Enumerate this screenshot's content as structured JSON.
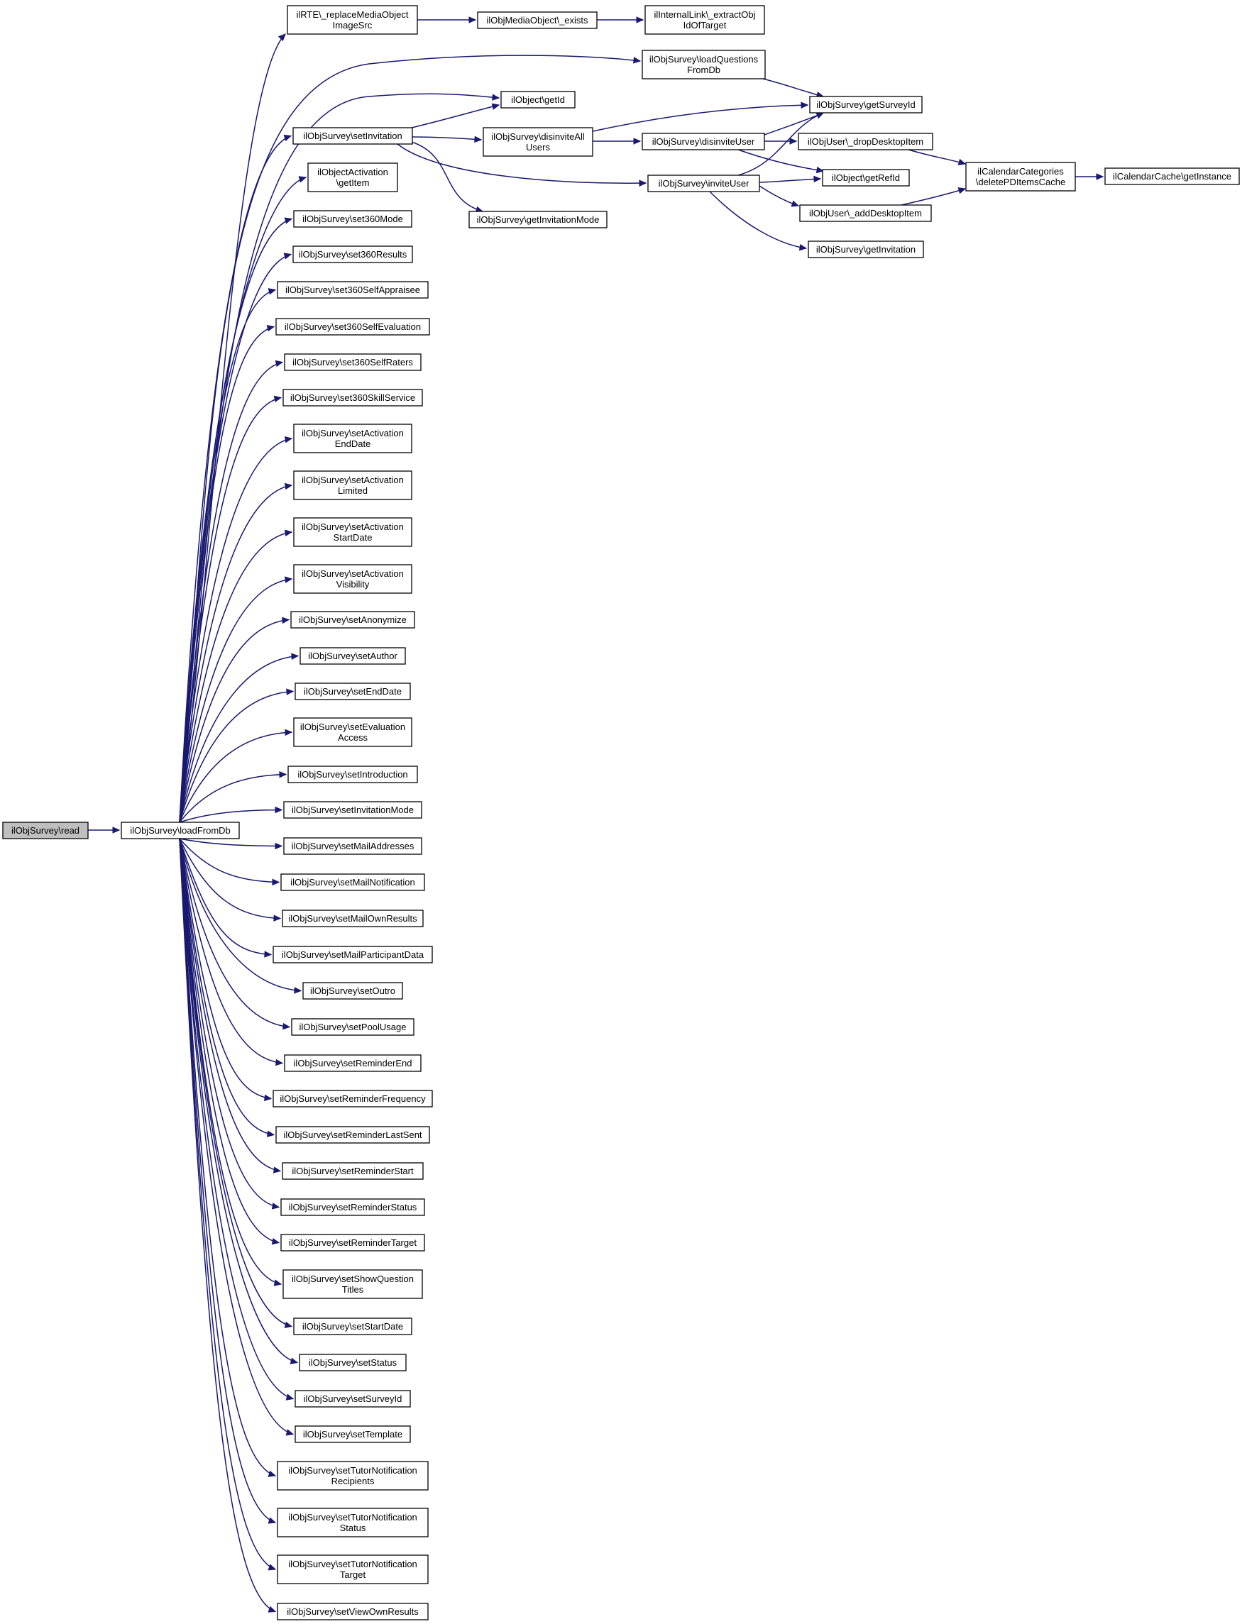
{
  "nodes": [
    {
      "id": "read",
      "lines": [
        "ilObjSurvey\\read"
      ],
      "root": true
    },
    {
      "id": "loadFromDb",
      "lines": [
        "ilObjSurvey\\loadFromDb"
      ]
    },
    {
      "id": "replaceMedia",
      "lines": [
        "ilRTE\\_replaceMediaObject",
        "ImageSrc"
      ]
    },
    {
      "id": "mediaExists",
      "lines": [
        "ilObjMediaObject\\_exists"
      ]
    },
    {
      "id": "extractObj",
      "lines": [
        "ilInternalLink\\_extractObj",
        "IdOfTarget"
      ]
    },
    {
      "id": "loadQuestions",
      "lines": [
        "ilObjSurvey\\loadQuestions",
        "FromDb"
      ]
    },
    {
      "id": "getId",
      "lines": [
        "ilObject\\getId"
      ]
    },
    {
      "id": "getSurveyId",
      "lines": [
        "ilObjSurvey\\getSurveyId"
      ]
    },
    {
      "id": "setInvitation",
      "lines": [
        "ilObjSurvey\\setInvitation"
      ]
    },
    {
      "id": "disinviteAll",
      "lines": [
        "ilObjSurvey\\disinviteAll",
        "Users"
      ]
    },
    {
      "id": "disinviteUser",
      "lines": [
        "ilObjSurvey\\disinviteUser"
      ]
    },
    {
      "id": "dropDesktop",
      "lines": [
        "ilObjUser\\_dropDesktopItem"
      ]
    },
    {
      "id": "calCategories",
      "lines": [
        "ilCalendarCategories",
        "\\deletePDItemsCache"
      ]
    },
    {
      "id": "calCache",
      "lines": [
        "ilCalendarCache\\getInstance"
      ]
    },
    {
      "id": "activationGetItem",
      "lines": [
        "ilObjectActivation",
        "\\getItem"
      ]
    },
    {
      "id": "inviteUser",
      "lines": [
        "ilObjSurvey\\inviteUser"
      ]
    },
    {
      "id": "getRefId",
      "lines": [
        "ilObject\\getRefId"
      ]
    },
    {
      "id": "addDesktop",
      "lines": [
        "ilObjUser\\_addDesktopItem"
      ]
    },
    {
      "id": "getInvitationMode",
      "lines": [
        "ilObjSurvey\\getInvitationMode"
      ]
    },
    {
      "id": "getInvitation",
      "lines": [
        "ilObjSurvey\\getInvitation"
      ]
    },
    {
      "id": "set360Mode",
      "lines": [
        "ilObjSurvey\\set360Mode"
      ]
    },
    {
      "id": "set360Results",
      "lines": [
        "ilObjSurvey\\set360Results"
      ]
    },
    {
      "id": "set360SelfAppraisee",
      "lines": [
        "ilObjSurvey\\set360SelfAppraisee"
      ]
    },
    {
      "id": "set360SelfEvaluation",
      "lines": [
        "ilObjSurvey\\set360SelfEvaluation"
      ]
    },
    {
      "id": "set360SelfRaters",
      "lines": [
        "ilObjSurvey\\set360SelfRaters"
      ]
    },
    {
      "id": "set360SkillService",
      "lines": [
        "ilObjSurvey\\set360SkillService"
      ]
    },
    {
      "id": "setActivationEndDate",
      "lines": [
        "ilObjSurvey\\setActivation",
        "EndDate"
      ]
    },
    {
      "id": "setActivationLimited",
      "lines": [
        "ilObjSurvey\\setActivation",
        "Limited"
      ]
    },
    {
      "id": "setActivationStartDate",
      "lines": [
        "ilObjSurvey\\setActivation",
        "StartDate"
      ]
    },
    {
      "id": "setActivationVisibility",
      "lines": [
        "ilObjSurvey\\setActivation",
        "Visibility"
      ]
    },
    {
      "id": "setAnonymize",
      "lines": [
        "ilObjSurvey\\setAnonymize"
      ]
    },
    {
      "id": "setAuthor",
      "lines": [
        "ilObjSurvey\\setAuthor"
      ]
    },
    {
      "id": "setEndDate",
      "lines": [
        "ilObjSurvey\\setEndDate"
      ]
    },
    {
      "id": "setEvaluationAccess",
      "lines": [
        "ilObjSurvey\\setEvaluation",
        "Access"
      ]
    },
    {
      "id": "setIntroduction",
      "lines": [
        "ilObjSurvey\\setIntroduction"
      ]
    },
    {
      "id": "setInvitationMode",
      "lines": [
        "ilObjSurvey\\setInvitationMode"
      ]
    },
    {
      "id": "setMailAddresses",
      "lines": [
        "ilObjSurvey\\setMailAddresses"
      ]
    },
    {
      "id": "setMailNotification",
      "lines": [
        "ilObjSurvey\\setMailNotification"
      ]
    },
    {
      "id": "setMailOwnResults",
      "lines": [
        "ilObjSurvey\\setMailOwnResults"
      ]
    },
    {
      "id": "setMailParticipantData",
      "lines": [
        "ilObjSurvey\\setMailParticipantData"
      ]
    },
    {
      "id": "setOutro",
      "lines": [
        "ilObjSurvey\\setOutro"
      ]
    },
    {
      "id": "setPoolUsage",
      "lines": [
        "ilObjSurvey\\setPoolUsage"
      ]
    },
    {
      "id": "setReminderEnd",
      "lines": [
        "ilObjSurvey\\setReminderEnd"
      ]
    },
    {
      "id": "setReminderFrequency",
      "lines": [
        "ilObjSurvey\\setReminderFrequency"
      ]
    },
    {
      "id": "setReminderLastSent",
      "lines": [
        "ilObjSurvey\\setReminderLastSent"
      ]
    },
    {
      "id": "setReminderStart",
      "lines": [
        "ilObjSurvey\\setReminderStart"
      ]
    },
    {
      "id": "setReminderStatus",
      "lines": [
        "ilObjSurvey\\setReminderStatus"
      ]
    },
    {
      "id": "setReminderTarget",
      "lines": [
        "ilObjSurvey\\setReminderTarget"
      ]
    },
    {
      "id": "setShowQuestionTitles",
      "lines": [
        "ilObjSurvey\\setShowQuestion",
        "Titles"
      ]
    },
    {
      "id": "setStartDate",
      "lines": [
        "ilObjSurvey\\setStartDate"
      ]
    },
    {
      "id": "setStatus",
      "lines": [
        "ilObjSurvey\\setStatus"
      ]
    },
    {
      "id": "setSurveyId",
      "lines": [
        "ilObjSurvey\\setSurveyId"
      ]
    },
    {
      "id": "setTemplate",
      "lines": [
        "ilObjSurvey\\setTemplate"
      ]
    },
    {
      "id": "setTutorNotificationRecipients",
      "lines": [
        "ilObjSurvey\\setTutorNotification",
        "Recipients"
      ]
    },
    {
      "id": "setTutorNotificationStatus",
      "lines": [
        "ilObjSurvey\\setTutorNotification",
        "Status"
      ]
    },
    {
      "id": "setTutorNotificationTarget",
      "lines": [
        "ilObjSurvey\\setTutorNotification",
        "Target"
      ]
    },
    {
      "id": "setViewOwnResults",
      "lines": [
        "ilObjSurvey\\setViewOwnResults"
      ]
    }
  ],
  "edges": [
    [
      "read",
      "loadFromDb"
    ],
    [
      "loadFromDb",
      "replaceMedia"
    ],
    [
      "loadFromDb",
      "loadQuestions"
    ],
    [
      "loadFromDb",
      "getId"
    ],
    [
      "loadFromDb",
      "setInvitation"
    ],
    [
      "loadFromDb",
      "activationGetItem"
    ],
    [
      "loadFromDb",
      "set360Mode"
    ],
    [
      "loadFromDb",
      "set360Results"
    ],
    [
      "loadFromDb",
      "set360SelfAppraisee"
    ],
    [
      "loadFromDb",
      "set360SelfEvaluation"
    ],
    [
      "loadFromDb",
      "set360SelfRaters"
    ],
    [
      "loadFromDb",
      "set360SkillService"
    ],
    [
      "loadFromDb",
      "setActivationEndDate"
    ],
    [
      "loadFromDb",
      "setActivationLimited"
    ],
    [
      "loadFromDb",
      "setActivationStartDate"
    ],
    [
      "loadFromDb",
      "setActivationVisibility"
    ],
    [
      "loadFromDb",
      "setAnonymize"
    ],
    [
      "loadFromDb",
      "setAuthor"
    ],
    [
      "loadFromDb",
      "setEndDate"
    ],
    [
      "loadFromDb",
      "setEvaluationAccess"
    ],
    [
      "loadFromDb",
      "setIntroduction"
    ],
    [
      "loadFromDb",
      "setInvitationMode"
    ],
    [
      "loadFromDb",
      "setMailAddresses"
    ],
    [
      "loadFromDb",
      "setMailNotification"
    ],
    [
      "loadFromDb",
      "setMailOwnResults"
    ],
    [
      "loadFromDb",
      "setMailParticipantData"
    ],
    [
      "loadFromDb",
      "setOutro"
    ],
    [
      "loadFromDb",
      "setPoolUsage"
    ],
    [
      "loadFromDb",
      "setReminderEnd"
    ],
    [
      "loadFromDb",
      "setReminderFrequency"
    ],
    [
      "loadFromDb",
      "setReminderLastSent"
    ],
    [
      "loadFromDb",
      "setReminderStart"
    ],
    [
      "loadFromDb",
      "setReminderStatus"
    ],
    [
      "loadFromDb",
      "setReminderTarget"
    ],
    [
      "loadFromDb",
      "setShowQuestionTitles"
    ],
    [
      "loadFromDb",
      "setStartDate"
    ],
    [
      "loadFromDb",
      "setStatus"
    ],
    [
      "loadFromDb",
      "setSurveyId"
    ],
    [
      "loadFromDb",
      "setTemplate"
    ],
    [
      "loadFromDb",
      "setTutorNotificationRecipients"
    ],
    [
      "loadFromDb",
      "setTutorNotificationStatus"
    ],
    [
      "loadFromDb",
      "setTutorNotificationTarget"
    ],
    [
      "loadFromDb",
      "setViewOwnResults"
    ],
    [
      "replaceMedia",
      "mediaExists"
    ],
    [
      "mediaExists",
      "extractObj"
    ],
    [
      "loadQuestions",
      "getSurveyId"
    ],
    [
      "setInvitation",
      "getId"
    ],
    [
      "setInvitation",
      "disinviteAll"
    ],
    [
      "setInvitation",
      "inviteUser"
    ],
    [
      "setInvitation",
      "getInvitationMode"
    ],
    [
      "disinviteAll",
      "getSurveyId"
    ],
    [
      "disinviteAll",
      "disinviteUser"
    ],
    [
      "disinviteUser",
      "getSurveyId"
    ],
    [
      "disinviteUser",
      "dropDesktop"
    ],
    [
      "disinviteUser",
      "getRefId"
    ],
    [
      "dropDesktop",
      "calCategories"
    ],
    [
      "calCategories",
      "calCache"
    ],
    [
      "inviteUser",
      "getSurveyId"
    ],
    [
      "inviteUser",
      "getRefId"
    ],
    [
      "inviteUser",
      "addDesktop"
    ],
    [
      "inviteUser",
      "getInvitation"
    ],
    [
      "addDesktop",
      "calCategories"
    ]
  ]
}
